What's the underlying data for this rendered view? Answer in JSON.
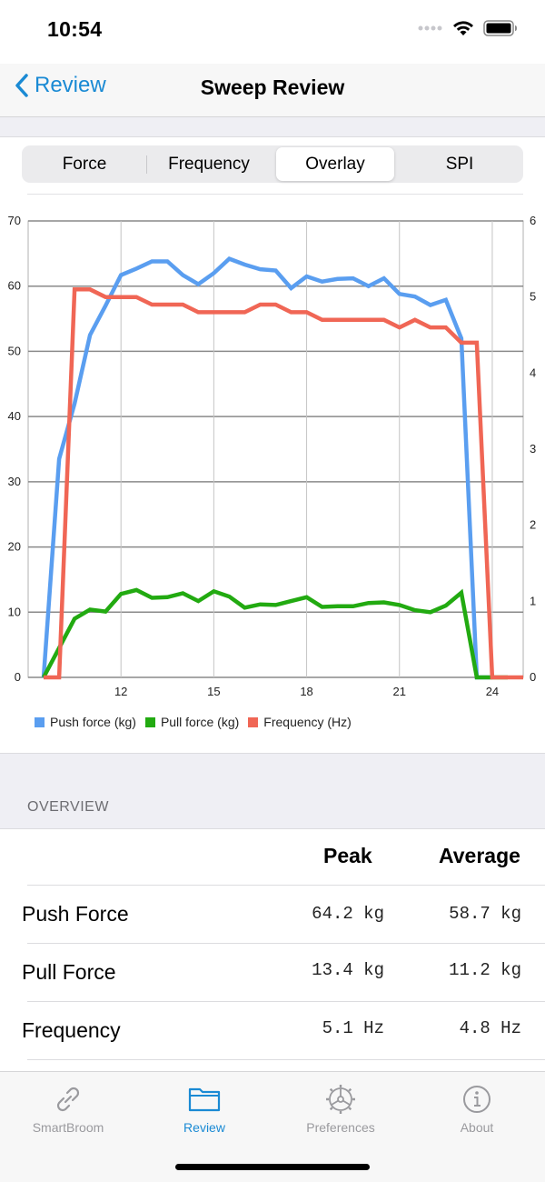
{
  "status_bar": {
    "time": "10:54"
  },
  "nav": {
    "back_label": "Review",
    "title": "Sweep Review"
  },
  "segments": [
    {
      "label": "Force",
      "active": false
    },
    {
      "label": "Frequency",
      "active": false
    },
    {
      "label": "Overlay",
      "active": true
    },
    {
      "label": "SPI",
      "active": false
    }
  ],
  "chart_data": {
    "type": "line",
    "title": "",
    "xlabel": "",
    "ylabel": "",
    "xlim": [
      9,
      25
    ],
    "ylim": [
      0,
      70
    ],
    "y2lim": [
      0,
      6
    ],
    "x_ticks": [
      12,
      15,
      18,
      21,
      24
    ],
    "y_ticks": [
      0,
      10,
      20,
      30,
      40,
      50,
      60,
      70
    ],
    "y2_ticks": [
      0,
      1,
      2,
      3,
      4,
      5,
      6
    ],
    "grid": true,
    "legend_position": "bottom-left",
    "series": [
      {
        "name": "Push force (kg)",
        "color": "#5a9ef0",
        "axis": "left",
        "x": [
          9.5,
          10.0,
          10.5,
          11.0,
          11.5,
          12.0,
          12.5,
          13.0,
          13.5,
          14.0,
          14.5,
          15.0,
          15.5,
          16.0,
          16.5,
          17.0,
          17.5,
          18.0,
          18.5,
          19.0,
          19.5,
          20.0,
          20.5,
          21.0,
          21.5,
          22.0,
          22.5,
          23.0,
          23.5,
          24.0
        ],
        "y": [
          0,
          33.5,
          42,
          52.5,
          57,
          61.7,
          62.7,
          63.8,
          63.8,
          61.7,
          60.3,
          62,
          64.2,
          63.3,
          62.6,
          62.4,
          59.7,
          61.5,
          60.7,
          61.1,
          61.2,
          60,
          61.2,
          58.8,
          58.4,
          57.1,
          57.9,
          52,
          0,
          0
        ]
      },
      {
        "name": "Pull force (kg)",
        "color": "#22aa11",
        "axis": "left",
        "x": [
          9.5,
          10.0,
          10.5,
          11.0,
          11.5,
          12.0,
          12.5,
          13.0,
          13.5,
          14.0,
          14.5,
          15.0,
          15.5,
          16.0,
          16.5,
          17.0,
          17.5,
          18.0,
          18.5,
          19.0,
          19.5,
          20.0,
          20.5,
          21.0,
          21.5,
          22.0,
          22.5,
          23.0,
          23.5,
          24.0,
          24.5
        ],
        "y": [
          0,
          4.5,
          9,
          10.4,
          10.1,
          12.8,
          13.4,
          12.2,
          12.3,
          12.9,
          11.7,
          13.2,
          12.4,
          10.7,
          11.2,
          11.1,
          11.7,
          12.3,
          10.8,
          10.9,
          10.9,
          11.4,
          11.5,
          11.1,
          10.3,
          10,
          11,
          13,
          0,
          0,
          0
        ]
      },
      {
        "name": "Frequency (Hz)",
        "color": "#f06655",
        "axis": "right",
        "x": [
          9.5,
          10.0,
          10.5,
          11.0,
          11.5,
          12.0,
          12.5,
          13.0,
          13.5,
          14.0,
          14.5,
          15.0,
          15.5,
          16.0,
          16.5,
          17.0,
          17.5,
          18.0,
          18.5,
          19.0,
          19.5,
          20.0,
          20.5,
          21.0,
          21.5,
          22.0,
          22.5,
          23.0,
          23.5,
          24.0,
          24.5,
          25.0
        ],
        "y": [
          0,
          0,
          5.1,
          5.1,
          5.0,
          5.0,
          5.0,
          4.9,
          4.9,
          4.9,
          4.8,
          4.8,
          4.8,
          4.8,
          4.9,
          4.9,
          4.8,
          4.8,
          4.7,
          4.7,
          4.7,
          4.7,
          4.7,
          4.6,
          4.7,
          4.6,
          4.6,
          4.4,
          4.4,
          0,
          0,
          0
        ]
      }
    ]
  },
  "overview": {
    "section_title": "OVERVIEW",
    "col_peak": "Peak",
    "col_average": "Average",
    "rows": [
      {
        "label": "Push Force",
        "peak": "64.2 kg",
        "average": "58.7 kg"
      },
      {
        "label": "Pull Force",
        "peak": "13.4 kg",
        "average": "11.2 kg"
      },
      {
        "label": "Frequency",
        "peak": "5.1 Hz",
        "average": "4.8 Hz"
      }
    ]
  },
  "tabs": [
    {
      "label": "SmartBroom",
      "icon": "link-icon",
      "active": false
    },
    {
      "label": "Review",
      "icon": "folder-icon",
      "active": true
    },
    {
      "label": "Preferences",
      "icon": "gear-icon",
      "active": false
    },
    {
      "label": "About",
      "icon": "info-icon",
      "active": false
    }
  ],
  "colors": {
    "accent": "#1a8ad4",
    "inactive_tab": "#9a9a9e"
  }
}
